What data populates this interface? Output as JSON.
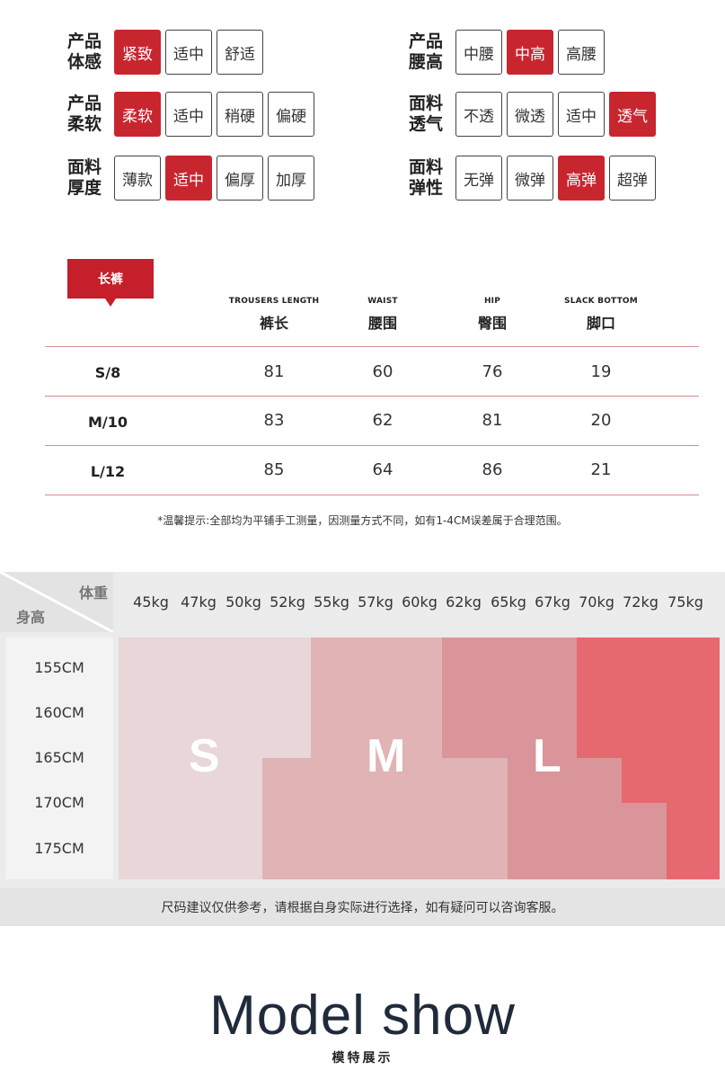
{
  "attributes": [
    {
      "label": "产品\n体感",
      "options": [
        "紧致",
        "适中",
        "舒适"
      ],
      "selected": 0
    },
    {
      "label": "产品\n腰高",
      "options": [
        "中腰",
        "中高",
        "高腰"
      ],
      "selected": 1
    },
    {
      "label": "产品\n柔软",
      "options": [
        "柔软",
        "适中",
        "稍硬",
        "偏硬"
      ],
      "selected": 0
    },
    {
      "label": "面料\n透气",
      "options": [
        "不透",
        "微透",
        "适中",
        "透气"
      ],
      "selected": 3
    },
    {
      "label": "面料\n厚度",
      "options": [
        "薄款",
        "适中",
        "偏厚",
        "加厚"
      ],
      "selected": 1
    },
    {
      "label": "面料\n弹性",
      "options": [
        "无弹",
        "微弹",
        "高弹",
        "超弹"
      ],
      "selected": 2
    }
  ],
  "size_table": {
    "tab_label": "长裤",
    "columns": [
      {
        "en": "TROUSERS LENGTH",
        "cn": "裤长"
      },
      {
        "en": "WAIST",
        "cn": "腰围"
      },
      {
        "en": "HIP",
        "cn": "臀围"
      },
      {
        "en": "SLACK BOTTOM",
        "cn": "脚口"
      }
    ],
    "rows": [
      {
        "size": "S/8",
        "values": [
          "81",
          "60",
          "76",
          "19"
        ]
      },
      {
        "size": "M/10",
        "values": [
          "83",
          "62",
          "81",
          "20"
        ]
      },
      {
        "size": "L/12",
        "values": [
          "85",
          "64",
          "86",
          "21"
        ]
      }
    ],
    "note": "*温馨提示:全部均为平铺手工测量，因测量方式不同，如有1-4CM误差属于合理范围。"
  },
  "size_grid": {
    "weight_header": "体重",
    "height_header": "身高",
    "weights": [
      "45kg",
      "47kg",
      "50kg",
      "52kg",
      "55kg",
      "57kg",
      "60kg",
      "62kg",
      "65kg",
      "67kg",
      "70kg",
      "72kg",
      "75kg"
    ],
    "heights": [
      "155CM",
      "160CM",
      "165CM",
      "170CM",
      "175CM"
    ],
    "sizes": [
      "S",
      "M",
      "L"
    ],
    "colors": {
      "s": "#e8d6d8",
      "m_light": "#e0b3b5",
      "m_dark": "#dda4a8",
      "l_light": "#d99599",
      "l_dark": "#e5696f"
    },
    "advice": "尺码建议仅供参考，请根据自身实际进行选择，如有疑问可以咨询客服。"
  },
  "model_show": {
    "title": "Model show",
    "subtitle": "模特展示"
  }
}
